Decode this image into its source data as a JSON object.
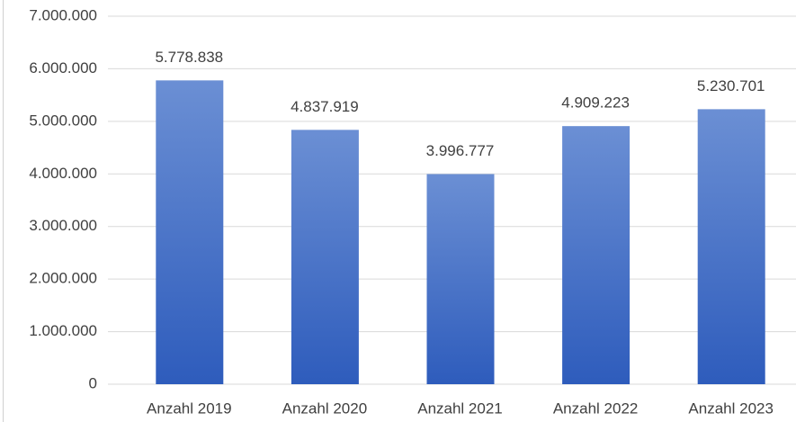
{
  "chart_data": {
    "type": "bar",
    "categories": [
      "Anzahl 2019",
      "Anzahl 2020",
      "Anzahl 2021",
      "Anzahl 2022",
      "Anzahl 2023"
    ],
    "values": [
      5778838,
      4837919,
      3996777,
      4909223,
      5230701
    ],
    "value_labels": [
      "5.778.838",
      "4.837.919",
      "3.996.777",
      "4.909.223",
      "5.230.701"
    ],
    "color": "#4472c4",
    "ylim": [
      0,
      7000000
    ],
    "yticks": [
      0,
      {
        "value": 1000000,
        "label": "1.000.000"
      },
      {
        "value": 2000000,
        "label": "2.000.000"
      },
      {
        "value": 3000000,
        "label": "3.000.000"
      },
      {
        "value": 4000000,
        "label": "4.000.000"
      },
      {
        "value": 5000000,
        "label": "5.000.000"
      },
      {
        "value": 6000000,
        "label": "6.000.000"
      },
      {
        "value": 7000000,
        "label": "7.000.000"
      }
    ],
    "grid": true
  }
}
